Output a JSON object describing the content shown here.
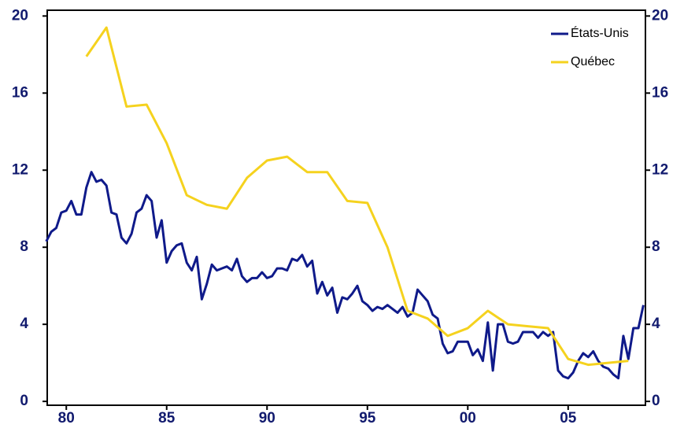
{
  "chart_data": {
    "type": "line",
    "xlim": [
      1979.05,
      2008.85
    ],
    "xticks": [
      {
        "value": 1980,
        "label": "80"
      },
      {
        "value": 1985,
        "label": "85"
      },
      {
        "value": 1990,
        "label": "90"
      },
      {
        "value": 1995,
        "label": "95"
      },
      {
        "value": 2000,
        "label": "00"
      },
      {
        "value": 2005,
        "label": "05"
      }
    ],
    "ylim": [
      -0.2,
      20.3
    ],
    "yticks": [
      0,
      4,
      8,
      12,
      16,
      20
    ],
    "y2lim": [
      -0.2,
      20.3
    ],
    "y2ticks": [
      0,
      4,
      8,
      12,
      16,
      20
    ],
    "legend": "upper right",
    "series": [
      {
        "name": "États-Unis",
        "color": "#0f1a8a",
        "x": [
          1979,
          1979.25,
          1979.5,
          1979.75,
          1980,
          1980.25,
          1980.5,
          1980.75,
          1981,
          1981.25,
          1981.5,
          1981.75,
          1982,
          1982.25,
          1982.5,
          1982.75,
          1983,
          1983.25,
          1983.5,
          1983.75,
          1984,
          1984.25,
          1984.5,
          1984.75,
          1985,
          1985.25,
          1985.5,
          1985.75,
          1986,
          1986.25,
          1986.5,
          1986.75,
          1987,
          1987.25,
          1987.5,
          1987.75,
          1988,
          1988.25,
          1988.5,
          1988.75,
          1989,
          1989.25,
          1989.5,
          1989.75,
          1990,
          1990.25,
          1990.5,
          1990.75,
          1991,
          1991.25,
          1991.5,
          1991.75,
          1992,
          1992.25,
          1992.5,
          1992.75,
          1993,
          1993.25,
          1993.5,
          1993.75,
          1994,
          1994.25,
          1994.5,
          1994.75,
          1995,
          1995.25,
          1995.5,
          1995.75,
          1996,
          1996.25,
          1996.5,
          1996.75,
          1997,
          1997.25,
          1997.5,
          1997.75,
          1998,
          1998.25,
          1998.5,
          1998.75,
          1999,
          1999.25,
          1999.5,
          1999.75,
          2000,
          2000.25,
          2000.5,
          2000.75,
          2001,
          2001.25,
          2001.5,
          2001.75,
          2002,
          2002.25,
          2002.5,
          2002.75,
          2003,
          2003.25,
          2003.5,
          2003.75,
          2004,
          2004.25,
          2004.5,
          2004.75,
          2005,
          2005.25,
          2005.5,
          2005.75,
          2006,
          2006.25,
          2006.5,
          2006.75,
          2007,
          2007.25,
          2007.5,
          2007.75,
          2008,
          2008.25,
          2008.5,
          2008.75
        ],
        "values": [
          8.3,
          8.8,
          9.0,
          9.8,
          9.9,
          10.4,
          9.7,
          9.7,
          11.1,
          11.9,
          11.4,
          11.5,
          11.2,
          9.8,
          9.7,
          8.5,
          8.2,
          8.7,
          9.8,
          10.0,
          10.7,
          10.4,
          8.5,
          9.4,
          7.2,
          7.8,
          8.1,
          8.2,
          7.2,
          6.8,
          7.5,
          5.3,
          6.1,
          7.1,
          6.8,
          6.9,
          7.0,
          6.8,
          7.4,
          6.5,
          6.2,
          6.4,
          6.4,
          6.7,
          6.4,
          6.5,
          6.9,
          6.9,
          6.8,
          7.4,
          7.3,
          7.6,
          7.0,
          7.3,
          5.6,
          6.2,
          5.5,
          5.9,
          4.6,
          5.4,
          5.3,
          5.6,
          6.0,
          5.2,
          5.0,
          4.7,
          4.9,
          4.8,
          5.0,
          4.8,
          4.6,
          4.9,
          4.4,
          4.6,
          5.8,
          5.5,
          5.2,
          4.5,
          4.3,
          3.0,
          2.5,
          2.6,
          3.1,
          3.1,
          3.1,
          2.4,
          2.7,
          2.1,
          4.1,
          1.6,
          4.0,
          4.0,
          3.1,
          3.0,
          3.1,
          3.6,
          3.6,
          3.6,
          3.3,
          3.6,
          3.4,
          3.6,
          1.6,
          1.3,
          1.2,
          1.5,
          2.1,
          2.5,
          2.3,
          2.6,
          2.1,
          1.8,
          1.7,
          1.4,
          1.2,
          3.4,
          2.2,
          3.8,
          3.8,
          5.0
        ]
      },
      {
        "name": "Québec",
        "color": "#f5d21e",
        "x": [
          1981,
          1982,
          1983,
          1984,
          1985,
          1986,
          1987,
          1988,
          1989,
          1990,
          1991,
          1992,
          1993,
          1994,
          1995,
          1996,
          1997,
          1998,
          1999,
          2000,
          2001,
          2002,
          2003,
          2004,
          2005,
          2006,
          2007,
          2008
        ],
        "values": [
          17.9,
          19.4,
          15.3,
          15.4,
          13.4,
          10.7,
          10.2,
          10.0,
          11.6,
          12.5,
          12.7,
          11.9,
          11.9,
          10.4,
          10.3,
          8.0,
          4.7,
          4.3,
          3.4,
          3.8,
          4.7,
          4.0,
          3.9,
          3.8,
          2.2,
          1.9,
          2.0,
          2.1
        ]
      }
    ]
  }
}
